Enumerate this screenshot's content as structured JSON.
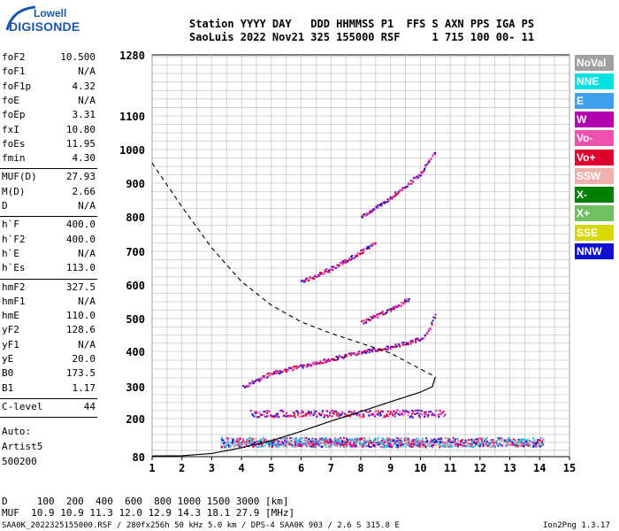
{
  "logo": {
    "top": "Lowell",
    "bottom": "DIGISONDE"
  },
  "header": {
    "columns_line": "Station YYYY DAY   DDD HHMMSS P1  FFS S AXN PPS IGA PS",
    "values_line": "SaoLuis 2022 Nov21 325 155000 RSF     1 715 100 00- 11"
  },
  "params": [
    {
      "group": 1,
      "label": "foF2",
      "value": "10.500"
    },
    {
      "group": 1,
      "label": "foF1",
      "value": "N/A"
    },
    {
      "group": 1,
      "label": "foF1p",
      "value": "4.32"
    },
    {
      "group": 1,
      "label": "foE",
      "value": "N/A"
    },
    {
      "group": 1,
      "label": "foEp",
      "value": "3.31"
    },
    {
      "group": 1,
      "label": "fxI",
      "value": "10.80"
    },
    {
      "group": 1,
      "label": "foEs",
      "value": "11.95"
    },
    {
      "group": 1,
      "label": "fmin",
      "value": "4.30"
    },
    {
      "group": 2,
      "label": "MUF(D)",
      "value": "27.93"
    },
    {
      "group": 2,
      "label": "M(D)",
      "value": "2.66"
    },
    {
      "group": 2,
      "label": "D",
      "value": "N/A"
    },
    {
      "group": 3,
      "label": "h`F",
      "value": "400.0"
    },
    {
      "group": 3,
      "label": "h`F2",
      "value": "400.0"
    },
    {
      "group": 3,
      "label": "h`E",
      "value": "N/A"
    },
    {
      "group": 3,
      "label": "h`Es",
      "value": "113.0"
    },
    {
      "group": 4,
      "label": "hmF2",
      "value": "327.5"
    },
    {
      "group": 4,
      "label": "hmF1",
      "value": "N/A"
    },
    {
      "group": 4,
      "label": "hmE",
      "value": "110.0"
    },
    {
      "group": 4,
      "label": "yF2",
      "value": "128.6"
    },
    {
      "group": 4,
      "label": "yF1",
      "value": "N/A"
    },
    {
      "group": 4,
      "label": "yE",
      "value": "20.0"
    },
    {
      "group": 4,
      "label": "B0",
      "value": "173.5"
    },
    {
      "group": 4,
      "label": "B1",
      "value": "1.17"
    },
    {
      "group": 5,
      "label": "C-level",
      "value": "44"
    }
  ],
  "auto": {
    "label": "Auto:",
    "artist": "Artist5",
    "version": "500200"
  },
  "legend": [
    {
      "label": "NoVal",
      "color": "#a0a0a0"
    },
    {
      "label": "NNE",
      "color": "#00e0e0"
    },
    {
      "label": "E",
      "color": "#40a0f0"
    },
    {
      "label": "W",
      "color": "#b000b0"
    },
    {
      "label": "Vo-",
      "color": "#f050b0"
    },
    {
      "label": "Vo+",
      "color": "#e00030"
    },
    {
      "label": "SSW",
      "color": "#f0b0b0"
    },
    {
      "label": "X-",
      "color": "#008000"
    },
    {
      "label": "X+",
      "color": "#70c060"
    },
    {
      "label": "SSE",
      "color": "#d8d800"
    },
    {
      "label": "NNW",
      "color": "#1010d0"
    }
  ],
  "footer": {
    "d_line": "D     100  200  400  600  800 1000 1500 3000 [km]",
    "muf_line": "MUF  10.9 10.9 11.3 12.0 12.9 14.3 18.1 27.9 [MHz]",
    "info_line": "SAA0K_2022325155000.RSF / 280fx256h 50 kHz 5.0 km / DPS-4 SAA0K 903 / 2.6 S 315.8 E",
    "version": "Ion2Png 1.3.17"
  },
  "chart_data": {
    "type": "scatter",
    "xlim": [
      1,
      15
    ],
    "ylim": [
      80,
      1280
    ],
    "x_ticks": [
      1,
      2,
      3,
      4,
      5,
      6,
      7,
      8,
      9,
      10,
      11,
      12,
      13,
      14,
      15
    ],
    "x_tick_labels": [
      "1",
      "2",
      "3",
      "4",
      "5",
      "6",
      "7",
      "8",
      "9",
      "10",
      "11",
      "12",
      "13",
      "14",
      "15"
    ],
    "y_ticks": [
      80,
      200,
      300,
      400,
      500,
      600,
      700,
      800,
      900,
      1000,
      1100,
      1280
    ],
    "y_tick_labels": [
      "80",
      "200",
      "300",
      "400",
      "500",
      "600",
      "700",
      "800",
      "900",
      "1000",
      "1100",
      "1280"
    ],
    "grid": true,
    "legend_position": "right",
    "profile_curve": [
      [
        1,
        82
      ],
      [
        2,
        83
      ],
      [
        3,
        90
      ],
      [
        4,
        108
      ],
      [
        5,
        130
      ],
      [
        6,
        160
      ],
      [
        7,
        192
      ],
      [
        8,
        222
      ],
      [
        9,
        253
      ],
      [
        10,
        283
      ],
      [
        10.4,
        300
      ],
      [
        10.5,
        328
      ]
    ],
    "dashed_curve": [
      [
        1,
        960
      ],
      [
        2,
        830
      ],
      [
        3,
        710
      ],
      [
        4,
        610
      ],
      [
        5,
        540
      ],
      [
        6,
        490
      ],
      [
        7,
        455
      ],
      [
        8,
        425
      ],
      [
        9,
        395
      ],
      [
        10,
        350
      ],
      [
        10.5,
        328
      ]
    ],
    "traces": [
      {
        "name": "F2 O-mode",
        "points": [
          [
            4,
            300
          ],
          [
            5,
            340
          ],
          [
            6,
            360
          ],
          [
            7,
            380
          ],
          [
            8,
            400
          ],
          [
            9,
            415
          ],
          [
            10,
            440
          ],
          [
            10.3,
            470
          ],
          [
            10.5,
            520
          ]
        ]
      },
      {
        "name": "F2 2nd hop",
        "points": [
          [
            6,
            610
          ],
          [
            7,
            650
          ],
          [
            8,
            700
          ],
          [
            8.5,
            730
          ]
        ]
      },
      {
        "name": "F2 3rd hop",
        "points": [
          [
            8,
            800
          ],
          [
            9,
            860
          ],
          [
            10,
            930
          ],
          [
            10.5,
            1000
          ]
        ]
      },
      {
        "name": "F2 X-mode",
        "points": [
          [
            8,
            490
          ],
          [
            9,
            530
          ],
          [
            9.6,
            560
          ]
        ]
      },
      {
        "name": "Es 1st",
        "points": [
          [
            4.3,
            218
          ],
          [
            6,
            218
          ],
          [
            8,
            218
          ],
          [
            10,
            218
          ],
          [
            10.8,
            218
          ]
        ]
      },
      {
        "name": "Es low",
        "points": [
          [
            3.3,
            125
          ],
          [
            5,
            125
          ],
          [
            7,
            125
          ],
          [
            9,
            125
          ],
          [
            11,
            125
          ],
          [
            12,
            125
          ],
          [
            14,
            125
          ]
        ]
      }
    ]
  }
}
